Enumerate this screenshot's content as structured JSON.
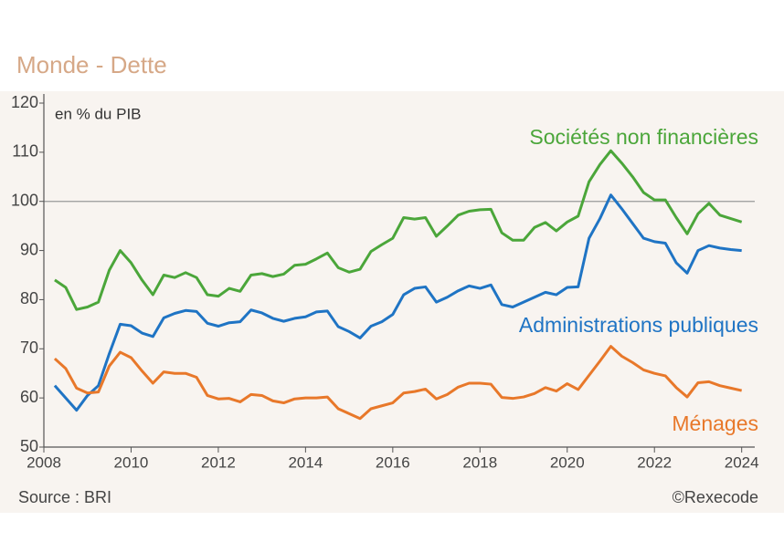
{
  "chart_data": {
    "type": "line",
    "title": "Monde - Dette",
    "unit_label": "en % du PIB",
    "source": "Source : BRI",
    "copyright": "©Rexecode",
    "xlim": [
      2008,
      2024.3
    ],
    "xticks": [
      2008,
      2010,
      2012,
      2014,
      2016,
      2018,
      2020,
      2022,
      2024
    ],
    "ylim": [
      50,
      120
    ],
    "yticks": [
      50,
      60,
      70,
      80,
      90,
      100,
      110,
      120
    ],
    "reference_line": 100,
    "x": [
      2008.25,
      2008.5,
      2008.75,
      2009,
      2009.25,
      2009.5,
      2009.75,
      2010,
      2010.25,
      2010.5,
      2010.75,
      2011,
      2011.25,
      2011.5,
      2011.75,
      2012,
      2012.25,
      2012.5,
      2012.75,
      2013,
      2013.25,
      2013.5,
      2013.75,
      2014,
      2014.25,
      2014.5,
      2014.75,
      2015,
      2015.25,
      2015.5,
      2015.75,
      2016,
      2016.25,
      2016.5,
      2016.75,
      2017,
      2017.25,
      2017.5,
      2017.75,
      2018,
      2018.25,
      2018.5,
      2018.75,
      2019,
      2019.25,
      2019.5,
      2019.75,
      2020,
      2020.25,
      2020.5,
      2020.75,
      2021,
      2021.25,
      2021.5,
      2021.75,
      2022,
      2022.25,
      2022.5,
      2022.75,
      2023,
      2023.25,
      2023.5,
      2023.75,
      2024
    ],
    "series": [
      {
        "name": "Sociétés non financières",
        "color": "#4ba63a",
        "values": [
          84,
          82.5,
          78,
          78.5,
          79.5,
          86,
          90,
          87.5,
          84,
          81,
          85,
          84.5,
          85.5,
          84.5,
          81,
          80.7,
          82.3,
          81.7,
          85,
          85.3,
          84.7,
          85.2,
          87,
          87.2,
          88.3,
          89.5,
          86.5,
          85.6,
          86.2,
          89.8,
          91.2,
          92.5,
          96.7,
          96.4,
          96.7,
          92.9,
          95,
          97.2,
          98,
          98.3,
          98.4,
          93.6,
          92.1,
          92.1,
          94.7,
          95.7,
          94,
          95.8,
          97,
          104,
          107.5,
          110.3,
          107.8,
          105,
          101.8,
          100.3,
          100.3,
          96.7,
          93.4,
          97.5,
          99.6,
          97.2,
          96.5,
          95.8
        ]
      },
      {
        "name": "Administrations publiques",
        "color": "#1f74c4",
        "values": [
          62.5,
          60,
          57.5,
          60.5,
          62.5,
          69,
          75,
          74.7,
          73.2,
          72.5,
          76.3,
          77.2,
          77.8,
          77.6,
          75.2,
          74.6,
          75.3,
          75.5,
          77.9,
          77.3,
          76.2,
          75.6,
          76.2,
          76.5,
          77.5,
          77.7,
          74.5,
          73.5,
          72.2,
          74.6,
          75.5,
          77,
          81,
          82.3,
          82.6,
          79.5,
          80.5,
          81.8,
          82.8,
          82.3,
          83,
          79,
          78.5,
          79.5,
          80.5,
          81.5,
          81,
          82.5,
          82.6,
          92.5,
          96.5,
          101.3,
          98.5,
          95.5,
          92.5,
          91.8,
          91.5,
          87.5,
          85.4,
          90,
          91,
          90.5,
          90.2,
          90
        ]
      },
      {
        "name": "Ménages",
        "color": "#e8782a",
        "values": [
          68,
          66,
          62,
          61,
          61.2,
          66.5,
          69.3,
          68.2,
          65.5,
          63,
          65.3,
          65,
          65,
          64.2,
          60.5,
          59.8,
          59.9,
          59.2,
          60.7,
          60.5,
          59.4,
          59,
          59.8,
          60,
          60,
          60.2,
          57.8,
          56.8,
          55.8,
          57.8,
          58.4,
          59,
          61,
          61.3,
          61.8,
          59.8,
          60.7,
          62.2,
          63,
          63,
          62.8,
          60.1,
          59.9,
          60.2,
          60.9,
          62.1,
          61.4,
          62.9,
          61.7,
          64.6,
          67.5,
          70.5,
          68.5,
          67.2,
          65.7,
          65,
          64.5,
          62.1,
          60.2,
          63.1,
          63.3,
          62.5,
          62,
          61.5
        ]
      }
    ]
  }
}
